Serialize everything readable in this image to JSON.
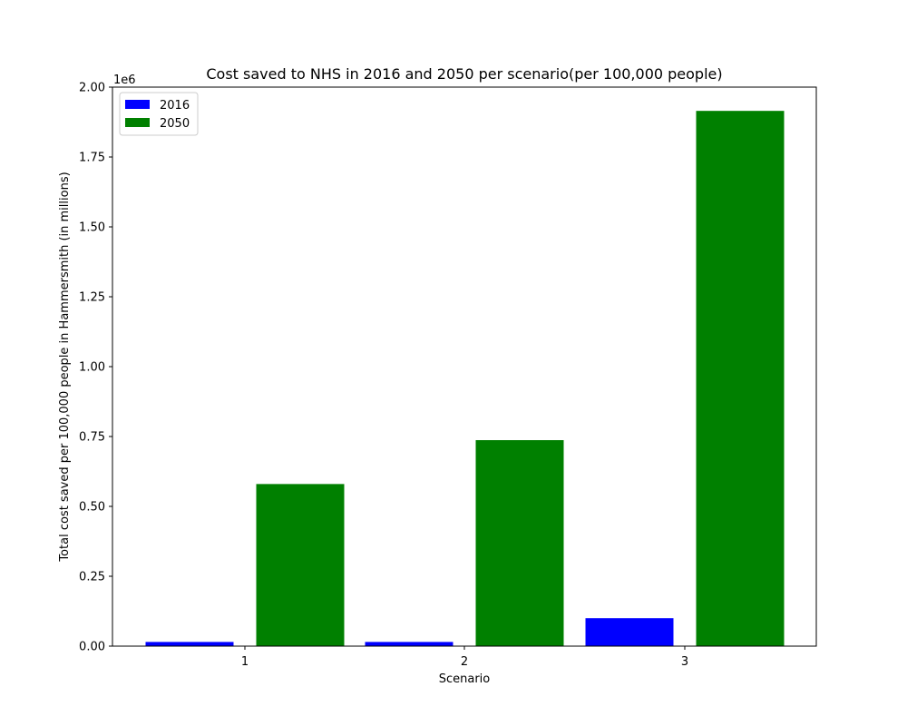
{
  "chart_data": {
    "type": "bar",
    "title": "Cost saved to NHS  in 2016 and 2050 per scenario(per 100,000 people)",
    "xlabel": "Scenario",
    "ylabel": "Total cost saved per 100,000 people in Hammersmith (in millions)",
    "categories": [
      "1",
      "2",
      "3"
    ],
    "y_offset_text": "1e6",
    "ylim": [
      0,
      2.0
    ],
    "yticks": [
      "0.00",
      "0.25",
      "0.50",
      "0.75",
      "1.00",
      "1.25",
      "1.50",
      "1.75",
      "2.00"
    ],
    "grid": false,
    "legend_position": "top-left",
    "series": [
      {
        "name": "2016",
        "color": "#0000ff",
        "values": [
          0.015,
          0.015,
          0.1
        ]
      },
      {
        "name": "2050",
        "color": "#008000",
        "values": [
          0.58,
          0.737,
          1.915
        ]
      }
    ]
  }
}
